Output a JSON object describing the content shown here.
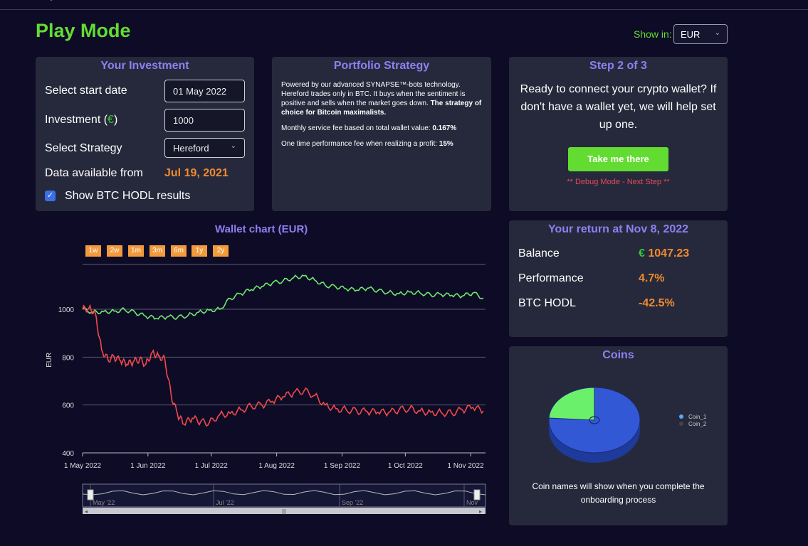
{
  "header": {
    "title": "Play Mode",
    "show_in_label": "Show in:",
    "currency": "EUR"
  },
  "investment": {
    "title": "Your Investment",
    "start_date_label": "Select start date",
    "start_date_value": "01 May 2022",
    "investment_label_prefix": "Investment (",
    "currency_symbol": "€",
    "investment_label_suffix": ")",
    "investment_value": "1000",
    "strategy_label": "Select Strategy",
    "strategy_value": "Hereford",
    "data_from_label": "Data available from",
    "data_from_value": "Jul 19, 2021",
    "hodl_label": "Show BTC HODL results",
    "hodl_checked": true
  },
  "strategy": {
    "title": "Portfolio Strategy",
    "p1_normal": "Powered by our advanced SYNAPSE™-bots technology. Hereford trades only in BTC. It buys when the sentiment is positive and sells when the market goes down.",
    "p1_bold": "The strategy of choice for Bitcoin maximalists.",
    "p2_normal": "Monthly service fee based on total wallet value:",
    "p2_bold": "0.167%",
    "p3_normal": "One time performance fee when realizing a profit:",
    "p3_bold": "15%"
  },
  "step": {
    "title": "Step 2 of 3",
    "text": "Ready to connect your crypto wallet? If don't have a wallet yet, we will help set up one.",
    "button": "Take me there",
    "debug": "** Debug Mode - Next Step **"
  },
  "returns": {
    "title": "Your return at Nov 8, 2022",
    "balance_label": "Balance",
    "balance_symbol": "€",
    "balance_value": "1047.23",
    "performance_label": "Performance",
    "performance_value": "4.7%",
    "hodl_label": "BTC HODL",
    "hodl_value": "-42.5%"
  },
  "coins": {
    "title": "Coins",
    "legend": [
      "Coin_1",
      "Coin_2"
    ],
    "note": "Coin names will show when you complete the onboarding process"
  },
  "colors": {
    "accent_green": "#63dc31",
    "title_purple": "#8e7ff2",
    "orange": "#f08a30",
    "red": "#e44a5a"
  },
  "chart_data": {
    "type": "line",
    "title": "Wallet chart (EUR)",
    "ylabel": "EUR",
    "range_buttons": [
      "1w",
      "2w",
      "1m",
      "3m",
      "6m",
      "1y",
      "2y"
    ],
    "x_ticks": [
      "1 May 2022",
      "1 Jun 2022",
      "1 Jul 2022",
      "1 Aug 2022",
      "1 Sep 2022",
      "1 Oct 2022",
      "1 Nov 2022"
    ],
    "y_ticks": [
      400,
      600,
      800,
      1000
    ],
    "ylim": [
      400,
      1210
    ],
    "navigator_labels": [
      "May '22",
      "Jul '22",
      "Sep '22",
      "Nov"
    ],
    "series": [
      {
        "color": "#6ee86e",
        "x": [
          "2022-05-01",
          "2022-05-06",
          "2022-05-11",
          "2022-05-16",
          "2022-05-21",
          "2022-05-26",
          "2022-05-31",
          "2022-06-05",
          "2022-06-10",
          "2022-06-15",
          "2022-06-20",
          "2022-06-25",
          "2022-06-30",
          "2022-07-05",
          "2022-07-10",
          "2022-07-15",
          "2022-07-20",
          "2022-07-25",
          "2022-07-30",
          "2022-08-04",
          "2022-08-09",
          "2022-08-14",
          "2022-08-19",
          "2022-08-24",
          "2022-08-29",
          "2022-09-03",
          "2022-09-08",
          "2022-09-13",
          "2022-09-18",
          "2022-09-23",
          "2022-09-28",
          "2022-10-03",
          "2022-10-08",
          "2022-10-13",
          "2022-10-18",
          "2022-10-23",
          "2022-10-28",
          "2022-11-02",
          "2022-11-07"
        ],
        "values": [
          1000,
          988,
          990,
          992,
          998,
          986,
          970,
          962,
          968,
          966,
          974,
          988,
          996,
          1000,
          1045,
          1065,
          1082,
          1095,
          1110,
          1118,
          1132,
          1140,
          1122,
          1100,
          1094,
          1085,
          1080,
          1088,
          1078,
          1070,
          1065,
          1072,
          1068,
          1060,
          1062,
          1058,
          1055,
          1068,
          1047
        ]
      },
      {
        "color": "#f24a4a",
        "x": [
          "2022-05-01",
          "2022-05-04",
          "2022-05-07",
          "2022-05-10",
          "2022-05-13",
          "2022-05-16",
          "2022-05-19",
          "2022-05-22",
          "2022-05-25",
          "2022-05-28",
          "2022-05-31",
          "2022-06-03",
          "2022-06-06",
          "2022-06-09",
          "2022-06-12",
          "2022-06-15",
          "2022-06-18",
          "2022-06-22",
          "2022-06-26",
          "2022-06-30",
          "2022-07-05",
          "2022-07-10",
          "2022-07-15",
          "2022-07-20",
          "2022-07-25",
          "2022-07-30",
          "2022-08-04",
          "2022-08-09",
          "2022-08-14",
          "2022-08-19",
          "2022-08-24",
          "2022-08-29",
          "2022-09-03",
          "2022-09-08",
          "2022-09-13",
          "2022-09-18",
          "2022-09-23",
          "2022-09-28",
          "2022-10-03",
          "2022-10-08",
          "2022-10-13",
          "2022-10-18",
          "2022-10-23",
          "2022-10-28",
          "2022-11-02",
          "2022-11-07"
        ],
        "values": [
          1000,
          1005,
          985,
          830,
          790,
          800,
          785,
          770,
          780,
          790,
          770,
          820,
          805,
          790,
          640,
          560,
          520,
          545,
          530,
          525,
          560,
          565,
          580,
          595,
          600,
          615,
          635,
          650,
          660,
          640,
          600,
          585,
          580,
          575,
          572,
          570,
          568,
          580,
          585,
          575,
          570,
          568,
          566,
          580,
          590,
          575
        ]
      }
    ]
  }
}
